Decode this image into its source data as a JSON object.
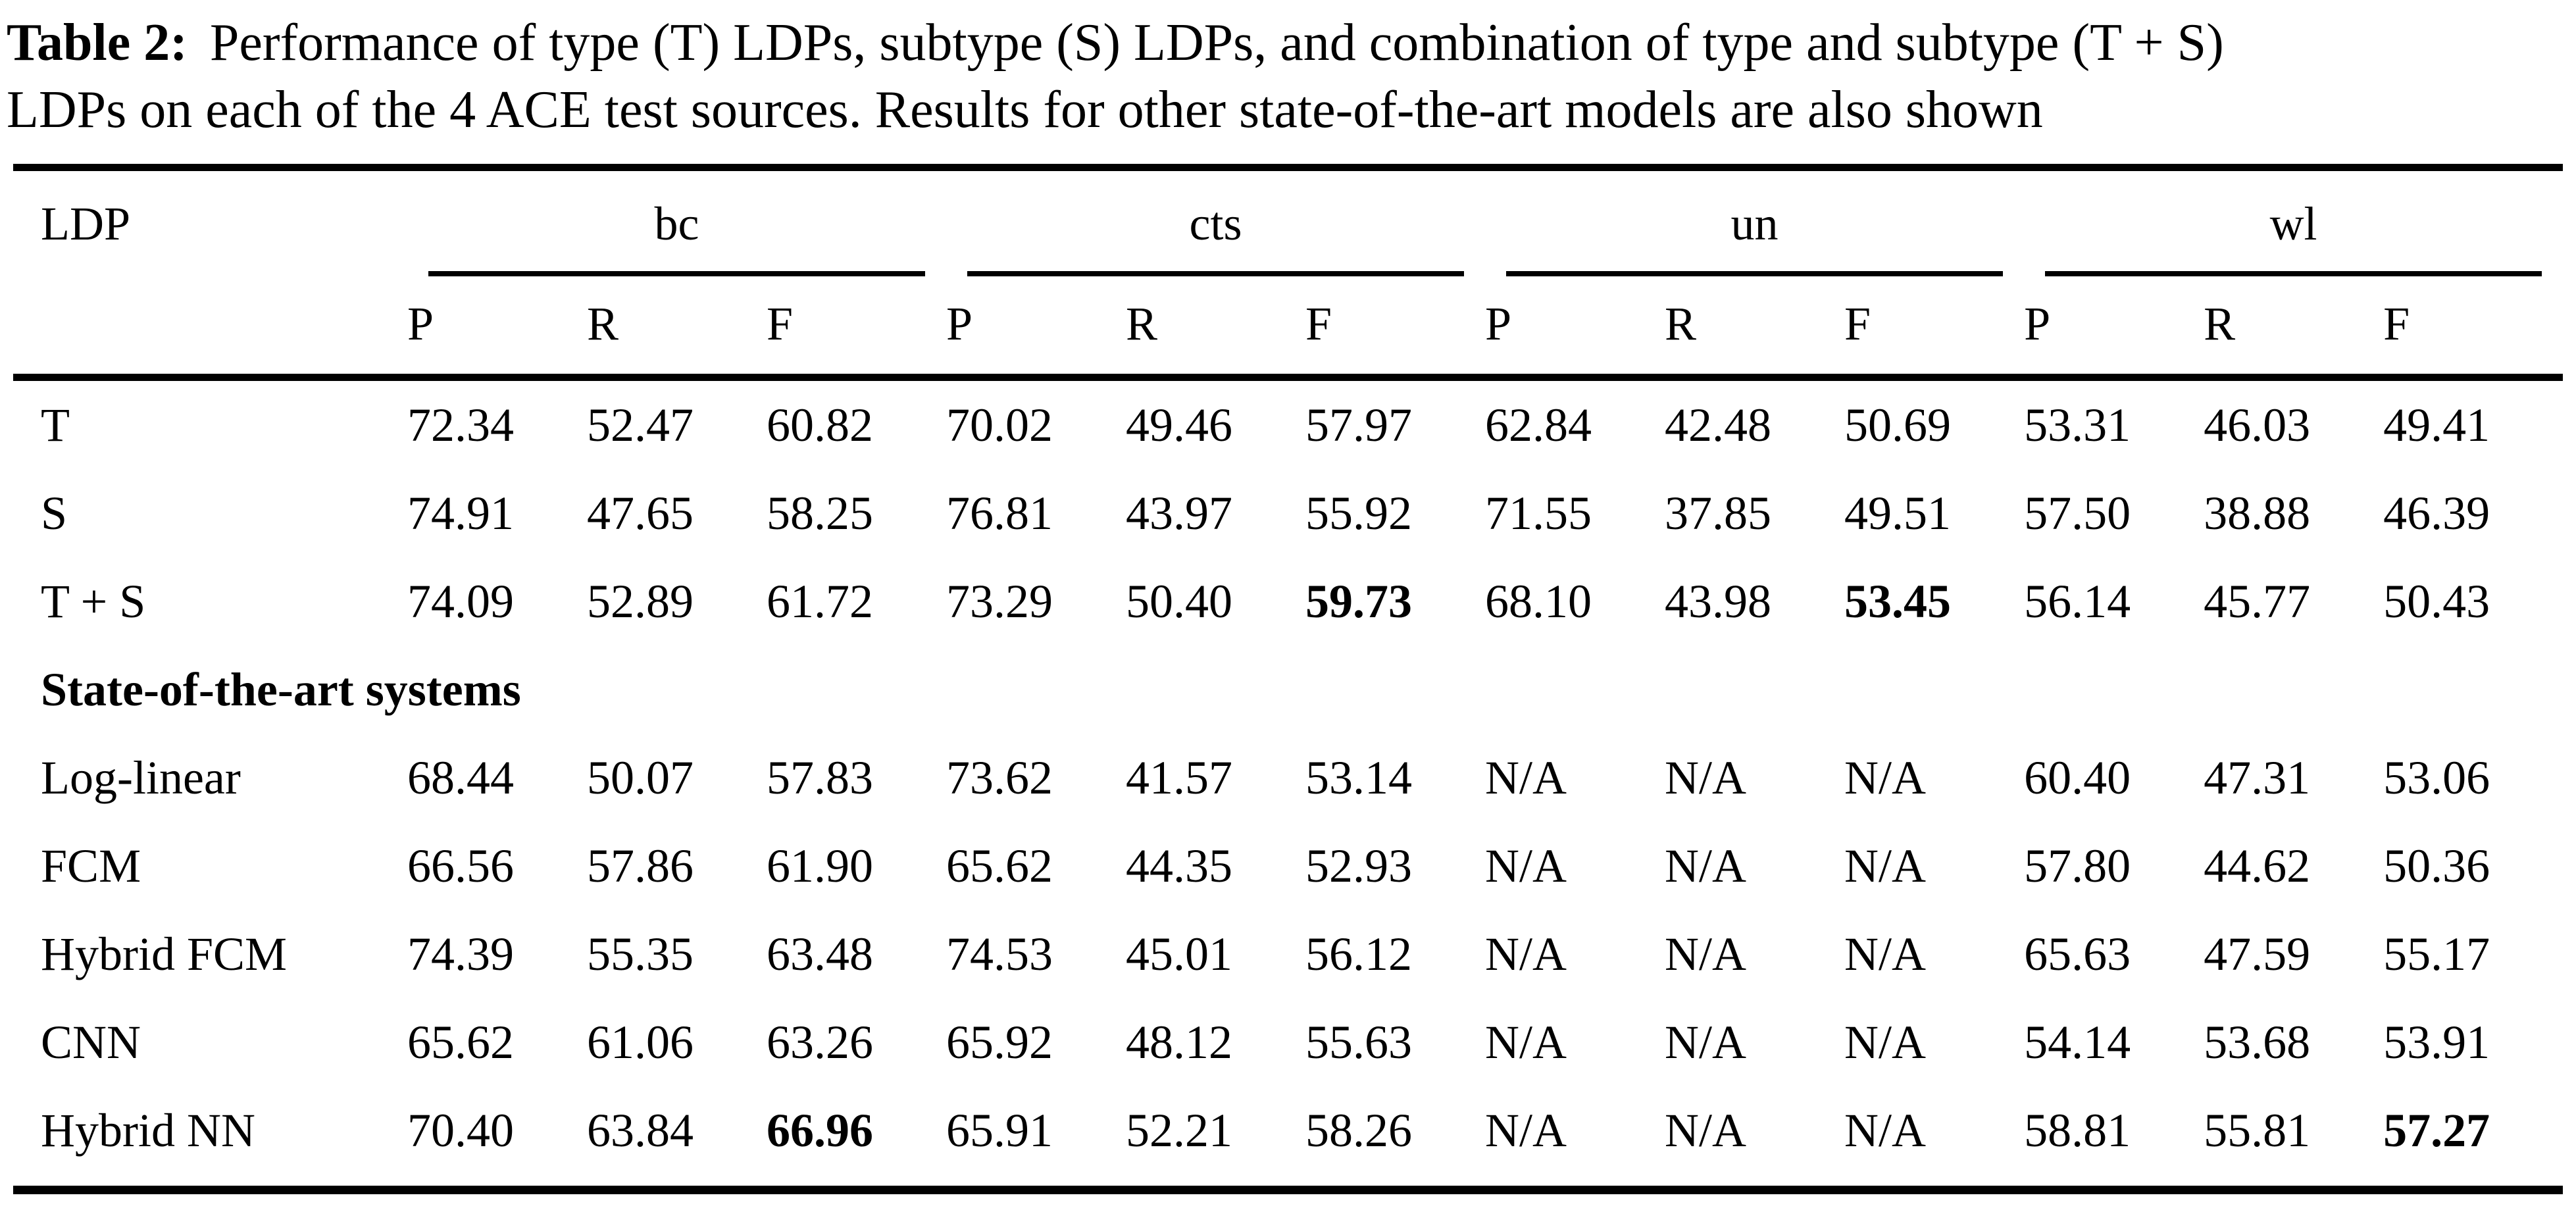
{
  "caption": {
    "label": "Table 2:",
    "line1": "Performance of type (T) LDPs, subtype (S) LDPs, and combination of type and subtype (T + S)",
    "line2": "LDPs on each of the 4 ACE test sources. Results for other state-of-the-art models are also shown"
  },
  "table": {
    "ldp_header": "LDP",
    "groups": [
      {
        "label": "bc"
      },
      {
        "label": "cts"
      },
      {
        "label": "un"
      },
      {
        "label": "wl"
      }
    ],
    "subheaders": [
      "P",
      "R",
      "F"
    ],
    "rows": [
      {
        "label": "T",
        "values": [
          "72.34",
          "52.47",
          "60.82",
          "70.02",
          "49.46",
          "57.97",
          "62.84",
          "42.48",
          "50.69",
          "53.31",
          "46.03",
          "49.41"
        ],
        "bold": []
      },
      {
        "label": "S",
        "values": [
          "74.91",
          "47.65",
          "58.25",
          "76.81",
          "43.97",
          "55.92",
          "71.55",
          "37.85",
          "49.51",
          "57.50",
          "38.88",
          "46.39"
        ],
        "bold": []
      },
      {
        "label": "T + S",
        "values": [
          "74.09",
          "52.89",
          "61.72",
          "73.29",
          "50.40",
          "59.73",
          "68.10",
          "43.98",
          "53.45",
          "56.14",
          "45.77",
          "50.43"
        ],
        "bold": [
          5,
          8
        ]
      },
      {
        "section": "State-of-the-art systems"
      },
      {
        "label": "Log-linear",
        "values": [
          "68.44",
          "50.07",
          "57.83",
          "73.62",
          "41.57",
          "53.14",
          "N/A",
          "N/A",
          "N/A",
          "60.40",
          "47.31",
          "53.06"
        ],
        "bold": []
      },
      {
        "label": "FCM",
        "values": [
          "66.56",
          "57.86",
          "61.90",
          "65.62",
          "44.35",
          "52.93",
          "N/A",
          "N/A",
          "N/A",
          "57.80",
          "44.62",
          "50.36"
        ],
        "bold": []
      },
      {
        "label": "Hybrid FCM",
        "values": [
          "74.39",
          "55.35",
          "63.48",
          "74.53",
          "45.01",
          "56.12",
          "N/A",
          "N/A",
          "N/A",
          "65.63",
          "47.59",
          "55.17"
        ],
        "bold": []
      },
      {
        "label": "CNN",
        "values": [
          "65.62",
          "61.06",
          "63.26",
          "65.92",
          "48.12",
          "55.63",
          "N/A",
          "N/A",
          "N/A",
          "54.14",
          "53.68",
          "53.91"
        ],
        "bold": []
      },
      {
        "label": "Hybrid NN",
        "values": [
          "70.40",
          "63.84",
          "66.96",
          "65.91",
          "52.21",
          "58.26",
          "N/A",
          "N/A",
          "N/A",
          "58.81",
          "55.81",
          "57.27"
        ],
        "bold": [
          2,
          11
        ]
      }
    ]
  }
}
